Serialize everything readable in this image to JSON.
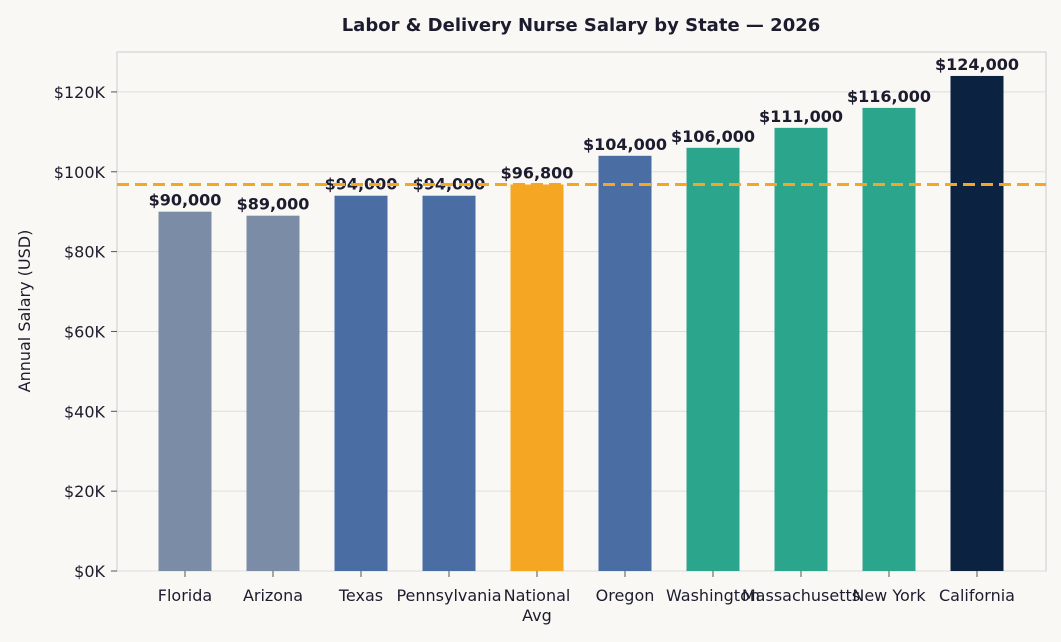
{
  "chart_data": {
    "type": "bar",
    "title": "Labor & Delivery Nurse Salary by State — 2026",
    "xlabel": "",
    "ylabel": "Annual Salary (USD)",
    "ylim": [
      0,
      130000
    ],
    "yticks": [
      0,
      20000,
      40000,
      60000,
      80000,
      100000,
      120000
    ],
    "ytick_labels": [
      "$0K",
      "$20K",
      "$40K",
      "$60K",
      "$80K",
      "$100K",
      "$120K"
    ],
    "categories": [
      [
        "Florida"
      ],
      [
        "Arizona"
      ],
      [
        "Texas"
      ],
      [
        "Pennsylvania"
      ],
      [
        "National",
        "Avg"
      ],
      [
        "Oregon"
      ],
      [
        "Washington"
      ],
      [
        "Massachusetts"
      ],
      [
        "New York"
      ],
      [
        "California"
      ]
    ],
    "values": [
      90000,
      89000,
      94000,
      94000,
      96800,
      104000,
      106000,
      111000,
      116000,
      124000
    ],
    "value_labels": [
      "$90,000",
      "$89,000",
      "$94,000",
      "$94,000",
      "$96,800",
      "$104,000",
      "$106,000",
      "$111,000",
      "$116,000",
      "$124,000"
    ],
    "bar_colors": [
      "#7a8ca6",
      "#7a8ca6",
      "#4a6da3",
      "#4a6da3",
      "#f5a623",
      "#4a6da3",
      "#2ca58d",
      "#2ca58d",
      "#2ca58d",
      "#0b2341"
    ],
    "reference_line": {
      "value": 96800,
      "color": "#f5a623",
      "style": "dashed"
    },
    "grid": true,
    "colors": {
      "background": "#f9f8f5",
      "grid": "#dddddd",
      "axis": "#cccccc",
      "text": "#1c1c2e"
    }
  }
}
